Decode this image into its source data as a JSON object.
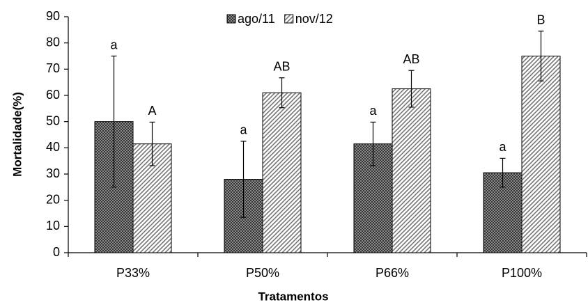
{
  "chart_data": {
    "type": "bar",
    "x_label": "Tratamentos",
    "y_label": "Mortalidade(%)",
    "categories": [
      "P33%",
      "P50%",
      "P66%",
      "P100%"
    ],
    "series": [
      {
        "name": "ago/11",
        "color": "#4d4d4d",
        "pattern": "crosshatch",
        "values": [
          50,
          28,
          41.5,
          30.5
        ],
        "errors": [
          25,
          14.5,
          8.3,
          5.5
        ],
        "letters": [
          "a",
          "a",
          "a",
          "a"
        ]
      },
      {
        "name": "nov/12",
        "color": "#6e6e6e",
        "pattern": "diagonal",
        "values": [
          41.5,
          61,
          62.5,
          75
        ],
        "errors": [
          8.3,
          5.7,
          7,
          9.5
        ],
        "letters": [
          "A",
          "AB",
          "AB",
          "B"
        ]
      }
    ],
    "ylim": [
      0,
      90
    ],
    "yticks": [
      0,
      10,
      20,
      30,
      40,
      50,
      60,
      70,
      80,
      90
    ],
    "legend": "top"
  }
}
